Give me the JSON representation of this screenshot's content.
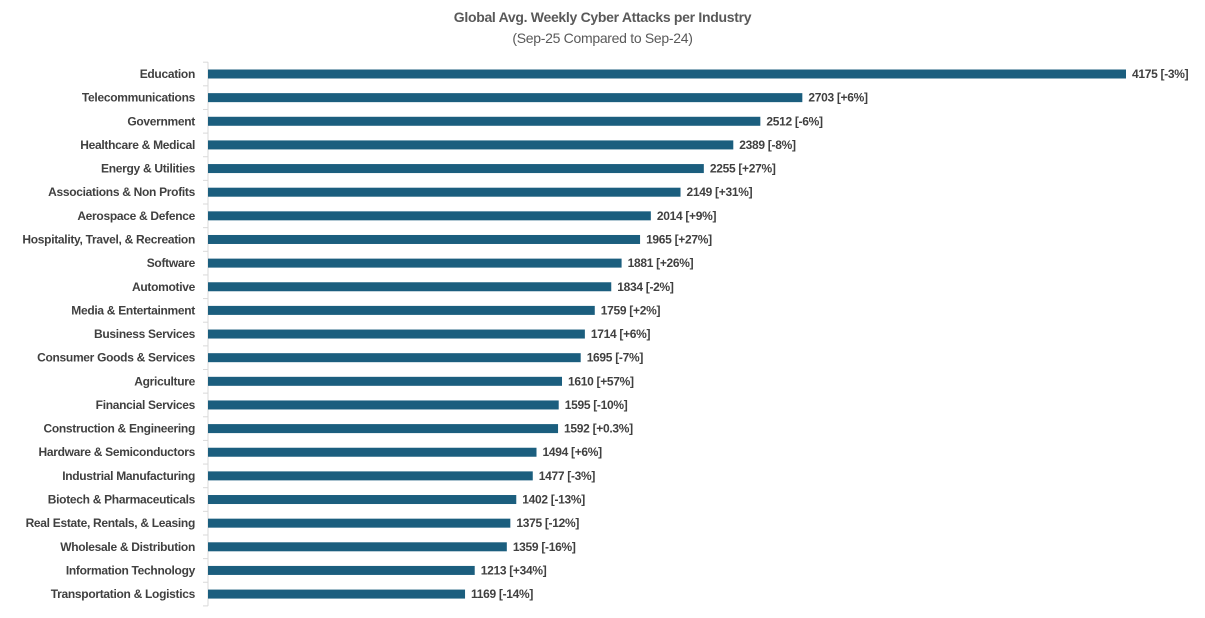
{
  "chart_data": {
    "type": "bar",
    "orientation": "horizontal",
    "title": "Global Avg. Weekly Cyber Attacks per Industry",
    "subtitle": "(Sep-25 Compared to Sep-24)",
    "xlabel": "",
    "ylabel": "",
    "xlim": [
      0,
      4175
    ],
    "grid": false,
    "legend": "none",
    "bar_color": "#1b5e7e",
    "categories": [
      "Education",
      "Telecommunications",
      "Government",
      "Healthcare & Medical",
      "Energy & Utilities",
      "Associations & Non Profits",
      "Aerospace & Defence",
      "Hospitality, Travel, & Recreation",
      "Software",
      "Automotive",
      "Media & Entertainment",
      "Business Services",
      "Consumer Goods & Services",
      "Agriculture",
      "Financial Services",
      "Construction & Engineering",
      "Hardware & Semiconductors",
      "Industrial Manufacturing",
      "Biotech & Pharmaceuticals",
      "Real Estate, Rentals, & Leasing",
      "Wholesale & Distribution",
      "Information Technology",
      "Transportation & Logistics"
    ],
    "values": [
      4175,
      2703,
      2512,
      2389,
      2255,
      2149,
      2014,
      1965,
      1881,
      1834,
      1759,
      1714,
      1695,
      1610,
      1595,
      1592,
      1494,
      1477,
      1402,
      1375,
      1359,
      1213,
      1169
    ],
    "data_labels": [
      "4175 [-3%]",
      "2703 [+6%]",
      "2512 [-6%]",
      "2389 [-8%]",
      "2255 [+27%]",
      "2149 [+31%]",
      "2014 [+9%]",
      "1965 [+27%]",
      "1881 [+26%]",
      "1834 [-2%]",
      "1759 [+2%]",
      "1714 [+6%]",
      "1695 [-7%]",
      "1610 [+57%]",
      "1595 [-10%]",
      "1592 [+0.3%]",
      "1494 [+6%]",
      "1477 [-3%]",
      "1402 [-13%]",
      "1375 [-12%]",
      "1359 [-16%]",
      "1213 [+34%]",
      "1169 [-14%]"
    ]
  }
}
